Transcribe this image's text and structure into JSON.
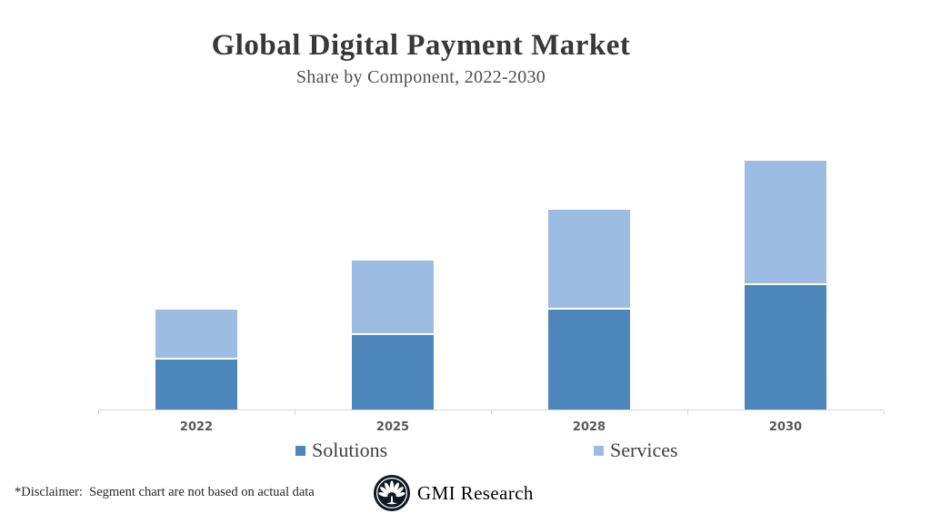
{
  "header": {
    "title": "Global Digital Payment Market",
    "subtitle": "Share by Component, 2022-2030"
  },
  "chart_data": {
    "type": "bar",
    "stacked": true,
    "categories": [
      "2022",
      "2025",
      "2028",
      "2030"
    ],
    "series": [
      {
        "name": "Solutions",
        "color": "#4d86ba",
        "values": [
          20,
          30,
          40,
          50
        ]
      },
      {
        "name": "Services",
        "color": "#9cbce2",
        "values": [
          20,
          30,
          40,
          50
        ]
      }
    ],
    "title": "Global Digital Payment Market",
    "subtitle": "Share by Component, 2022-2030",
    "xlabel": "",
    "ylabel": "",
    "ylim": [
      0,
      112
    ],
    "value_axis_visible": false,
    "gridlines": false,
    "legend_position": "bottom",
    "totals": [
      40,
      60,
      80,
      100
    ],
    "units": "relative index (no value axis shown)"
  },
  "legend": {
    "items": [
      {
        "label": "Solutions",
        "color": "#4d86ba"
      },
      {
        "label": "Services",
        "color": "#9cbce2"
      }
    ]
  },
  "footer": {
    "disclaimer": "*Disclaimer:  Segment chart are not based on actual data",
    "brand": "GMI Research"
  },
  "colors": {
    "solutions": "#4d86ba",
    "services": "#9cbce2",
    "axis_line": "#d6d6d6",
    "axis_label_text": "#595959",
    "title_text": "#383838",
    "subtitle_text": "#4f4f4f",
    "legend_text": "#404040",
    "disclaimer_text": "#262626",
    "logo_background": "#101820",
    "background": "#ffffff"
  }
}
